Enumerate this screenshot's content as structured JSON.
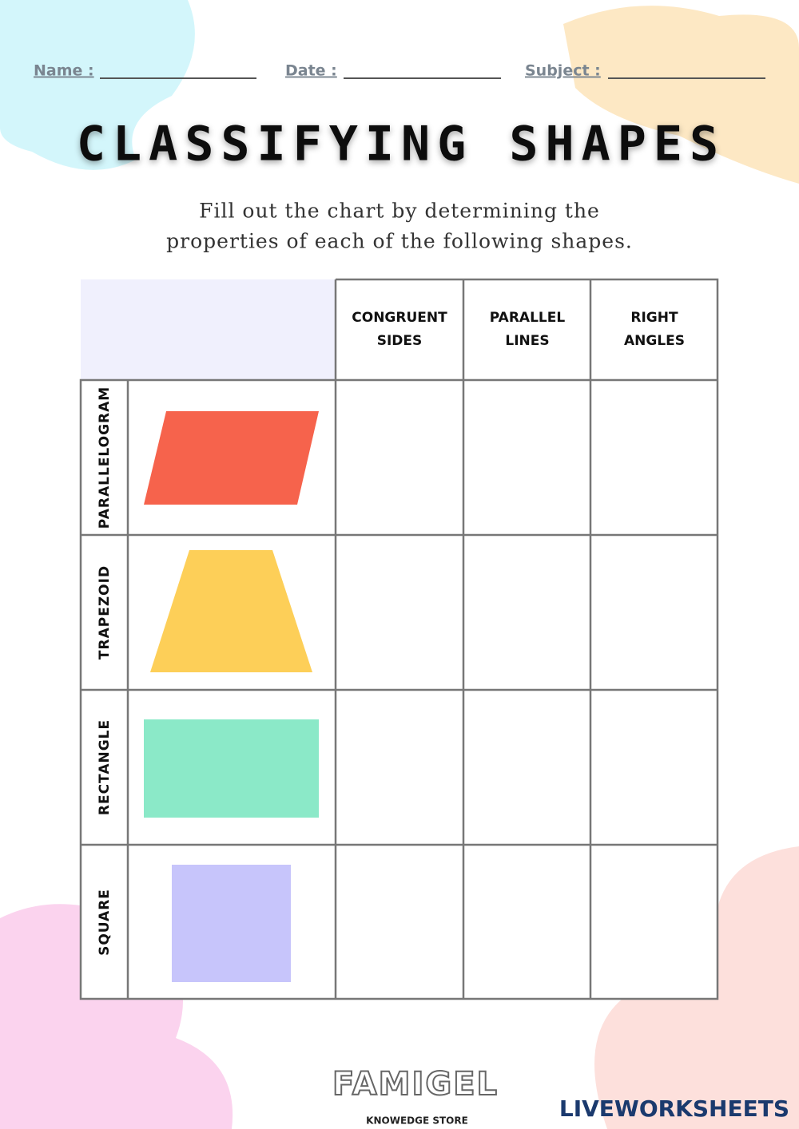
{
  "header": {
    "fields": [
      "Name :",
      "Date :",
      "Subject :"
    ]
  },
  "title": "CLASSIFYING SHAPES",
  "instructions": [
    "Fill out the chart by determining the",
    "properties of each of the following shapes."
  ],
  "table": {
    "columns": [
      [
        "CONGRUENT",
        "SIDES"
      ],
      [
        "PARALLEL",
        "LINES"
      ],
      [
        "RIGHT",
        "ANGLES"
      ]
    ],
    "rows": [
      {
        "label": "PARALLELOGRAM",
        "color": "#f6634c"
      },
      {
        "label": "TRAPEZOID",
        "color": "#fdcf58"
      },
      {
        "label": "RECTANGLE",
        "color": "#8be9c8"
      },
      {
        "label": "SQUARE",
        "color": "#c7c5fb"
      }
    ]
  },
  "footer": {
    "brand": "FAMIGEL",
    "tagline": "KNOWEDGE STORE",
    "site": "LIVEWORKSHEETS"
  }
}
